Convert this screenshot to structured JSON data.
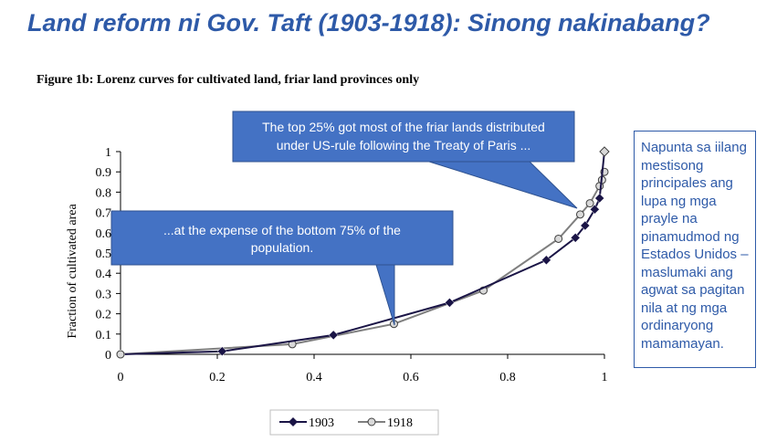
{
  "slide": {
    "title": "Land reform ni Gov. Taft (1903-1918): Sinong nakinabang?",
    "side_note": "Napunta sa iilang mestisong principales ang lupa ng mga prayle na pinamudmod ng Estados Unidos – maslumaki ang agwat sa pagitan nila at ng mga ordinaryong mamamayan."
  },
  "callouts": {
    "top": [
      "The top 25% got most of the friar lands distributed",
      "under US-rule following the Treaty of Paris ..."
    ],
    "bottom": [
      "...at the expense of the bottom 75% of the",
      "population."
    ]
  },
  "colors": {
    "accent": "#2e5aa8",
    "callout_fill": "#4472c4",
    "series_1903": "#1a1446",
    "series_1918": "#7f7f7f"
  },
  "chart_data": {
    "type": "line",
    "title": "Figure 1b: Lorenz curves for cultivated land, friar land provinces only",
    "xlabel": "",
    "ylabel": "Fraction of cultivated area",
    "xlim": [
      0,
      1
    ],
    "ylim": [
      0,
      1
    ],
    "xticks": [
      0,
      0.2,
      0.4,
      0.6,
      0.8,
      1
    ],
    "xtick_labels": [
      "0",
      "0.2",
      "0.4",
      "0.6",
      "0.8",
      "1"
    ],
    "yticks": [
      0,
      0.1,
      0.2,
      0.3,
      0.4,
      0.5,
      0.6,
      0.7,
      0.8,
      0.9,
      1
    ],
    "ytick_labels": [
      "0",
      "0.1",
      "0.2",
      "0.3",
      "0.4",
      "0.5",
      "0.6",
      "0.7",
      "0.8",
      "0.9",
      "1"
    ],
    "legend": "bottom",
    "series": [
      {
        "name": "1903",
        "marker": "diamond",
        "x": [
          0,
          0.21,
          0.44,
          0.68,
          0.88,
          0.94,
          0.96,
          0.98,
          0.99,
          1.0
        ],
        "y": [
          0,
          0.015,
          0.095,
          0.255,
          0.465,
          0.575,
          0.635,
          0.715,
          0.77,
          1.0
        ]
      },
      {
        "name": "1918",
        "marker": "circle",
        "x": [
          0,
          0.355,
          0.565,
          0.75,
          0.905,
          0.95,
          0.97,
          0.99,
          0.995,
          1.0
        ],
        "y": [
          0,
          0.05,
          0.15,
          0.315,
          0.57,
          0.69,
          0.745,
          0.83,
          0.86,
          0.9
        ]
      }
    ]
  }
}
